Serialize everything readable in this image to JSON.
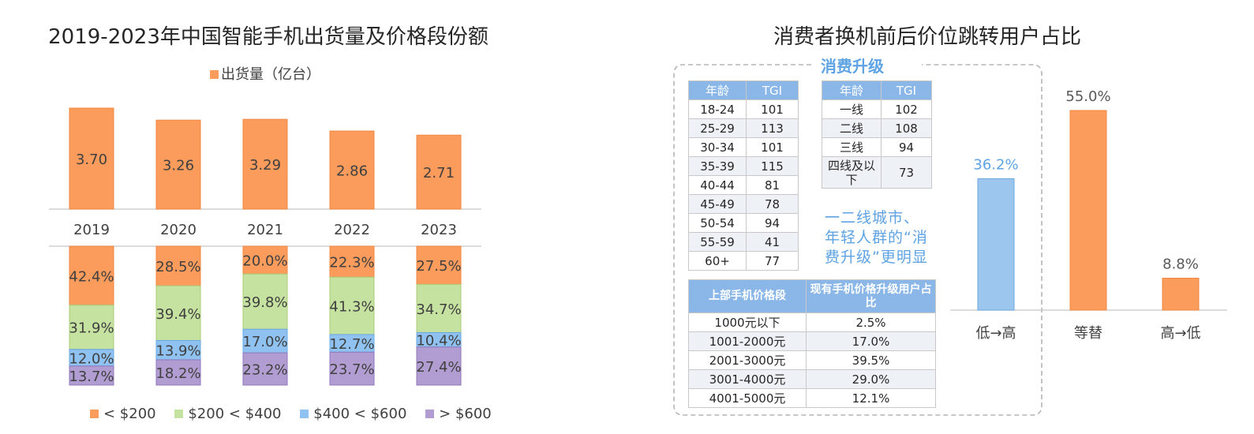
{
  "left_chart": {
    "title": "2019-2023年中国智能手机出货量及价格段份额",
    "legend_top": "出货量（亿台）",
    "legend_bottom": [
      "< $200",
      "$200 < $400",
      "$400 < $600",
      "> $600"
    ],
    "colors": {
      "orange": "#fb9b5c",
      "green": "#c6e2a0",
      "blue": "#8fc2f0",
      "purple": "#b19dd1"
    }
  },
  "right_panel": {
    "title": "消费者换机前后价位跳转用户占比",
    "upgrade_label": "消费升级",
    "note_lines": [
      "一二线城市、",
      "年轻人群的“消",
      "费升级”更明显"
    ],
    "age_table": {
      "headers": [
        "年龄",
        "TGI"
      ],
      "rows": [
        [
          "18-24",
          "101"
        ],
        [
          "25-29",
          "113"
        ],
        [
          "30-34",
          "101"
        ],
        [
          "35-39",
          "115"
        ],
        [
          "40-44",
          "81"
        ],
        [
          "45-49",
          "78"
        ],
        [
          "50-54",
          "94"
        ],
        [
          "55-59",
          "41"
        ],
        [
          "60+",
          "77"
        ]
      ]
    },
    "city_table": {
      "headers": [
        "年龄",
        "TGI"
      ],
      "rows": [
        [
          "一线",
          "102"
        ],
        [
          "二线",
          "108"
        ],
        [
          "三线",
          "94"
        ],
        [
          "四线及以下",
          "73"
        ]
      ]
    },
    "price_table": {
      "headers": [
        "上部手机价格段",
        "现有手机价格升级用户占比"
      ],
      "rows": [
        [
          "1000元以下",
          "2.5%"
        ],
        [
          "1001-2000元",
          "17.0%"
        ],
        [
          "2001-3000元",
          "39.5%"
        ],
        [
          "3001-4000元",
          "29.0%"
        ],
        [
          "4001-5000元",
          "12.1%"
        ]
      ]
    }
  },
  "chart_data": [
    {
      "type": "bar",
      "title": "2019-2023年中国智能手机出货量及价格段份额",
      "categories": [
        "2019",
        "2020",
        "2021",
        "2022",
        "2023"
      ],
      "series": [
        {
          "name": "出货量（亿台）",
          "values": [
            3.7,
            3.26,
            3.29,
            2.86,
            2.71
          ],
          "labels": [
            "3.70",
            "3.26",
            "3.29",
            "2.86",
            "2.71"
          ]
        }
      ],
      "ylim": [
        0,
        3.7
      ]
    },
    {
      "type": "bar",
      "stacked": true,
      "categories": [
        "2019",
        "2020",
        "2021",
        "2022",
        "2023"
      ],
      "series": [
        {
          "name": "< $200",
          "values": [
            42.4,
            28.5,
            20.0,
            22.3,
            27.5
          ],
          "labels": [
            "42.4%",
            "28.5%",
            "20.0%",
            "22.3%",
            "27.5%"
          ]
        },
        {
          "name": "$200 < $400",
          "values": [
            31.9,
            39.4,
            39.8,
            41.3,
            34.7
          ],
          "labels": [
            "31.9%",
            "39.4%",
            "39.8%",
            "41.3%",
            "34.7%"
          ]
        },
        {
          "name": "$400 < $600",
          "values": [
            12.0,
            13.9,
            17.0,
            12.7,
            10.4
          ],
          "labels": [
            "12.0%",
            "13.9%",
            "17.0%",
            "12.7%",
            "10.4%"
          ]
        },
        {
          "name": "> $600",
          "values": [
            13.7,
            18.2,
            23.2,
            23.7,
            27.4
          ],
          "labels": [
            "13.7%",
            "18.2%",
            "23.2%",
            "23.7%",
            "27.4%"
          ]
        }
      ],
      "legend": "bottom"
    },
    {
      "type": "bar",
      "title": "消费者换机前后价位跳转用户占比",
      "categories": [
        "低→高",
        "等替",
        "高→低"
      ],
      "values": [
        36.2,
        55.0,
        8.8
      ],
      "labels": [
        "36.2%",
        "55.0%",
        "8.8%"
      ],
      "colors": [
        "#9dc6ee",
        "#fb9b5c",
        "#fb9b5c"
      ],
      "label_colors": [
        "#5ea3e3",
        "#595959",
        "#595959"
      ],
      "ylim": [
        0,
        55.0
      ]
    }
  ]
}
